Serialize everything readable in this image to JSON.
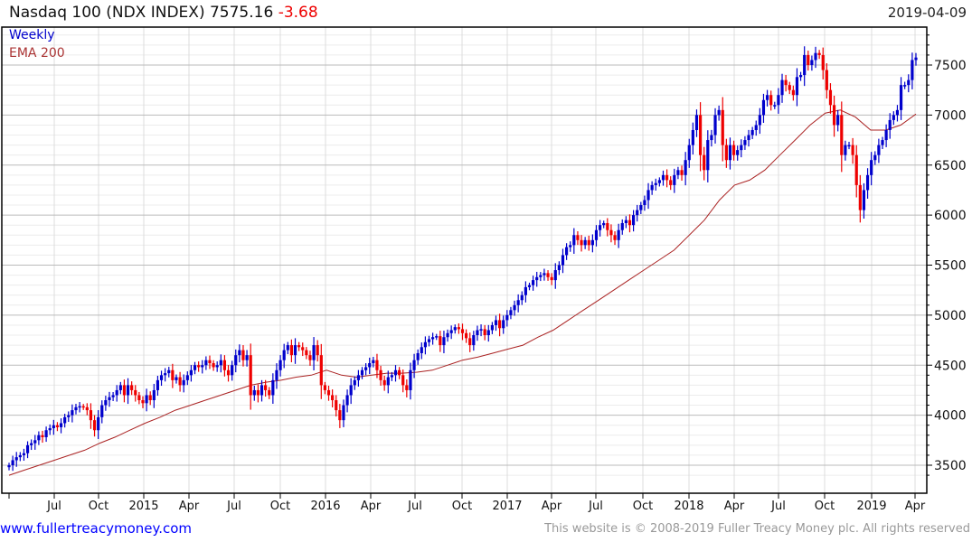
{
  "header": {
    "title": "Nasdaq 100 (NDX INDEX) 7575.16",
    "change": "-3.68",
    "date": "2019-04-09"
  },
  "footer": {
    "site": "www.fullertreacymoney.com",
    "copyright": "This website is © 2008-2019 Fuller Treacy Money plc. All rights reserved"
  },
  "chart_data": {
    "type": "candlestick",
    "title": "Nasdaq 100 (NDX INDEX)",
    "legend": [
      "Weekly",
      "EMA 200"
    ],
    "legend_position": "top-left",
    "colors": {
      "up": "#0000cc",
      "down": "#ee0000",
      "ema": "#aa2222"
    },
    "ylim": [
      3300,
      7850
    ],
    "yticks": [
      3500,
      4000,
      4500,
      5000,
      5500,
      6000,
      6500,
      7000,
      7500
    ],
    "xticks": [
      "Jul",
      "Oct",
      "2015",
      "Apr",
      "Jul",
      "Oct",
      "2016",
      "Apr",
      "Jul",
      "Oct",
      "2017",
      "Apr",
      "Jul",
      "Oct",
      "2018",
      "Apr",
      "Jul",
      "Oct",
      "2019",
      "Apr"
    ],
    "weekly_close": [
      3500,
      3550,
      3580,
      3600,
      3620,
      3700,
      3720,
      3750,
      3800,
      3780,
      3850,
      3870,
      3900,
      3880,
      3920,
      3980,
      4000,
      4050,
      4080,
      4090,
      4080,
      4050,
      3950,
      3850,
      3980,
      4100,
      4150,
      4180,
      4200,
      4250,
      4300,
      4200,
      4300,
      4250,
      4200,
      4150,
      4120,
      4200,
      4150,
      4250,
      4350,
      4400,
      4420,
      4450,
      4350,
      4380,
      4300,
      4350,
      4400,
      4450,
      4500,
      4480,
      4500,
      4550,
      4520,
      4480,
      4500,
      4550,
      4450,
      4400,
      4500,
      4600,
      4650,
      4550,
      4600,
      4200,
      4250,
      4200,
      4300,
      4250,
      4200,
      4350,
      4450,
      4550,
      4650,
      4700,
      4600,
      4700,
      4680,
      4650,
      4600,
      4550,
      4700,
      4600,
      4300,
      4250,
      4200,
      4150,
      4050,
      3950,
      4100,
      4200,
      4300,
      4350,
      4400,
      4450,
      4480,
      4520,
      4550,
      4450,
      4350,
      4300,
      4380,
      4400,
      4450,
      4400,
      4300,
      4250,
      4450,
      4550,
      4620,
      4680,
      4730,
      4760,
      4780,
      4790,
      4700,
      4780,
      4820,
      4850,
      4880,
      4860,
      4820,
      4770,
      4700,
      4800,
      4850,
      4860,
      4800,
      4850,
      4900,
      4950,
      4870,
      4950,
      5000,
      5050,
      5100,
      5150,
      5200,
      5280,
      5300,
      5350,
      5380,
      5400,
      5420,
      5380,
      5350,
      5450,
      5500,
      5600,
      5680,
      5700,
      5800,
      5750,
      5700,
      5750,
      5700,
      5750,
      5850,
      5900,
      5920,
      5850,
      5800,
      5750,
      5850,
      5920,
      5950,
      5900,
      6000,
      6050,
      6100,
      6150,
      6250,
      6300,
      6320,
      6350,
      6400,
      6350,
      6300,
      6400,
      6450,
      6400,
      6550,
      6700,
      6850,
      7000,
      6600,
      6450,
      6750,
      6800,
      7000,
      7050,
      6700,
      6550,
      6700,
      6600,
      6650,
      6700,
      6750,
      6800,
      6850,
      6900,
      7000,
      7150,
      7200,
      7100,
      7100,
      7200,
      7350,
      7300,
      7250,
      7200,
      7380,
      7400,
      7600,
      7500,
      7550,
      7620,
      7600,
      7450,
      7250,
      7100,
      6900,
      7000,
      6600,
      6700,
      6700,
      6600,
      6300,
      6050,
      6250,
      6400,
      6550,
      6600,
      6700,
      6750,
      6850,
      6950,
      7000,
      7050,
      7300,
      7300,
      7350,
      7550,
      7575
    ],
    "ema200_monthly": [
      3400,
      3450,
      3500,
      3550,
      3600,
      3650,
      3720,
      3780,
      3850,
      3920,
      3980,
      4050,
      4100,
      4150,
      4200,
      4250,
      4300,
      4330,
      4350,
      4380,
      4400,
      4450,
      4400,
      4380,
      4400,
      4420,
      4420,
      4430,
      4450,
      4500,
      4550,
      4580,
      4620,
      4660,
      4700,
      4780,
      4850,
      4950,
      5050,
      5150,
      5250,
      5350,
      5450,
      5550,
      5650,
      5800,
      5950,
      6150,
      6300,
      6350,
      6450,
      6600,
      6750,
      6900,
      7020,
      7050,
      6980,
      6850,
      6850,
      6900,
      7010
    ]
  }
}
